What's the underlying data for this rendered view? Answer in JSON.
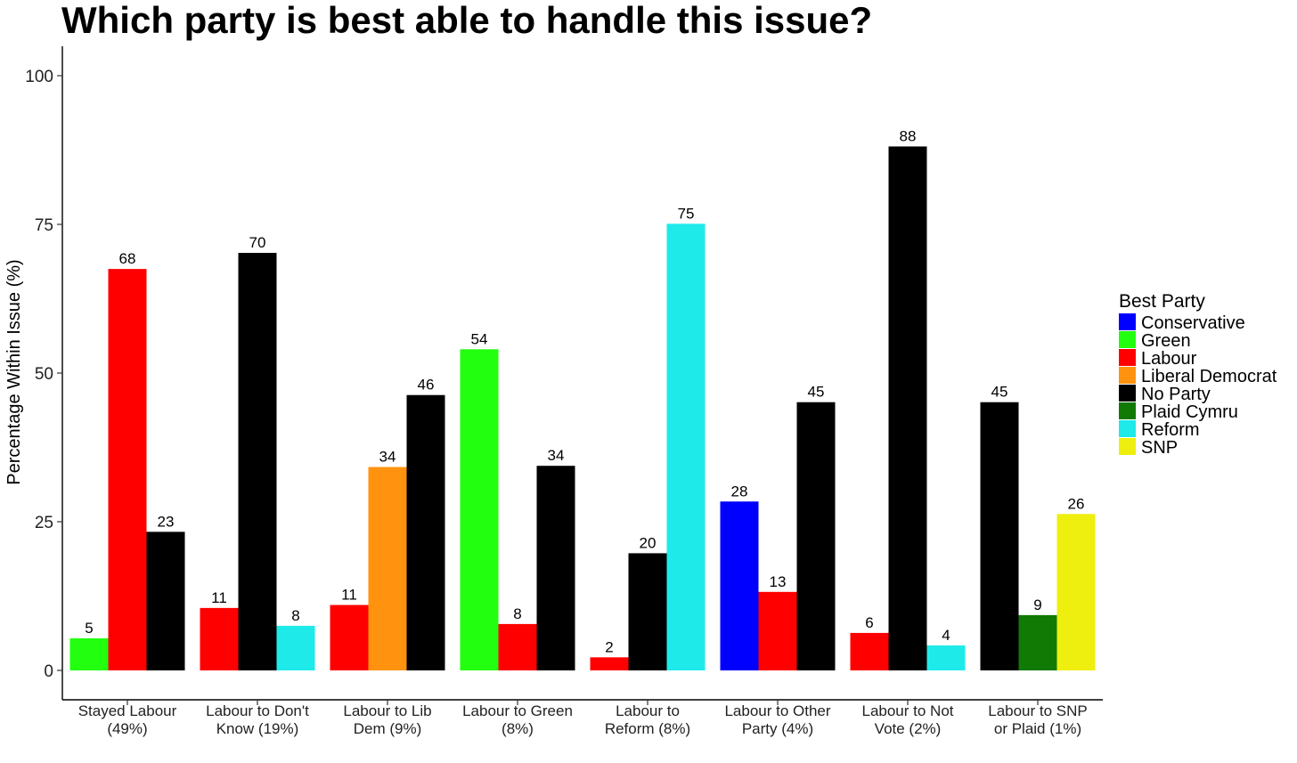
{
  "chart_data": {
    "type": "bar",
    "title": "Which party is best able to handle this issue?",
    "ylabel": "Percentage Within Issue (%)",
    "xlabel": "",
    "ylim": [
      -5,
      105
    ],
    "yticks": [
      0,
      25,
      50,
      75,
      100
    ],
    "grid": false,
    "legend": {
      "title": "Best Party",
      "position": "right",
      "entries": [
        {
          "name": "Conservative",
          "color": "#0000ff"
        },
        {
          "name": "Green",
          "color": "#22ff0f"
        },
        {
          "name": "Labour",
          "color": "#ff0000"
        },
        {
          "name": "Liberal Democrat",
          "color": "#ff930f"
        },
        {
          "name": "No Party",
          "color": "#000000"
        },
        {
          "name": "Plaid Cymru",
          "color": "#117a04"
        },
        {
          "name": "Reform",
          "color": "#1eeaea"
        },
        {
          "name": "SNP",
          "color": "#eeee0f"
        }
      ]
    },
    "categories": [
      {
        "label": [
          "Stayed Labour",
          "(49%)"
        ],
        "bars": [
          {
            "party": "Green",
            "value": 5.4,
            "label": "5"
          },
          {
            "party": "Labour",
            "value": 67.5,
            "label": "68"
          },
          {
            "party": "No Party",
            "value": 23.3,
            "label": "23"
          }
        ]
      },
      {
        "label": [
          "Labour to Don't",
          "Know (19%)"
        ],
        "bars": [
          {
            "party": "Labour",
            "value": 10.5,
            "label": "11"
          },
          {
            "party": "No Party",
            "value": 70.2,
            "label": "70"
          },
          {
            "party": "Reform",
            "value": 7.5,
            "label": "8"
          }
        ]
      },
      {
        "label": [
          "Labour to Lib",
          "Dem (9%)"
        ],
        "bars": [
          {
            "party": "Labour",
            "value": 11.0,
            "label": "11"
          },
          {
            "party": "Liberal Democrat",
            "value": 34.2,
            "label": "34"
          },
          {
            "party": "No Party",
            "value": 46.3,
            "label": "46"
          }
        ]
      },
      {
        "label": [
          "Labour to Green",
          "(8%)"
        ],
        "bars": [
          {
            "party": "Green",
            "value": 54.0,
            "label": "54"
          },
          {
            "party": "Labour",
            "value": 7.8,
            "label": "8"
          },
          {
            "party": "No Party",
            "value": 34.4,
            "label": "34"
          }
        ]
      },
      {
        "label": [
          "Labour to",
          "Reform (8%)"
        ],
        "bars": [
          {
            "party": "Labour",
            "value": 2.2,
            "label": "2"
          },
          {
            "party": "No Party",
            "value": 19.7,
            "label": "20"
          },
          {
            "party": "Reform",
            "value": 75.1,
            "label": "75"
          }
        ]
      },
      {
        "label": [
          "Labour to Other",
          "Party (4%)"
        ],
        "bars": [
          {
            "party": "Conservative",
            "value": 28.4,
            "label": "28"
          },
          {
            "party": "Labour",
            "value": 13.2,
            "label": "13"
          },
          {
            "party": "No Party",
            "value": 45.1,
            "label": "45"
          }
        ]
      },
      {
        "label": [
          "Labour to Not",
          "Vote (2%)"
        ],
        "bars": [
          {
            "party": "Labour",
            "value": 6.3,
            "label": "6"
          },
          {
            "party": "No Party",
            "value": 88.1,
            "label": "88"
          },
          {
            "party": "Reform",
            "value": 4.2,
            "label": "4"
          }
        ]
      },
      {
        "label": [
          "Labour to SNP",
          "or Plaid (1%)"
        ],
        "bars": [
          {
            "party": "No Party",
            "value": 45.1,
            "label": "45"
          },
          {
            "party": "Plaid Cymru",
            "value": 9.3,
            "label": "9"
          },
          {
            "party": "SNP",
            "value": 26.3,
            "label": "26"
          }
        ]
      }
    ]
  }
}
